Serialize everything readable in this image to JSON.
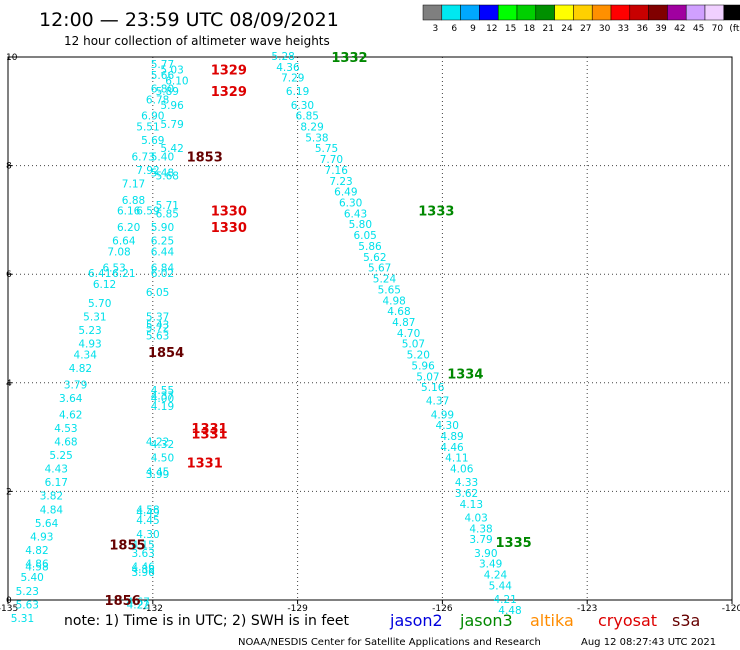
{
  "title": "12:00 — 23:59 UTC 08/09/2021",
  "subtitle": "12 hour collection of altimeter wave heights",
  "legend": {
    "labels": [
      "3",
      "6",
      "9",
      "12",
      "15",
      "18",
      "21",
      "24",
      "27",
      "30",
      "33",
      "36",
      "39",
      "42",
      "45",
      "70",
      "(ft)"
    ],
    "colors": [
      "#7f7f7f",
      "#00e8f0",
      "#00a8ff",
      "#0000ff",
      "#00ff00",
      "#00d000",
      "#009000",
      "#ffff00",
      "#ffd000",
      "#ff9000",
      "#ff0000",
      "#c80000",
      "#800000",
      "#a000a0",
      "#d0a0ff",
      "#f0d0ff",
      "#000000"
    ]
  },
  "note": "note:  1) Time is in UTC;  2) SWH is in feet",
  "satellites": [
    {
      "name": "jason2",
      "color": "#0000dd"
    },
    {
      "name": "jason3",
      "color": "#008800"
    },
    {
      "name": "altika",
      "color": "#ff8c00"
    },
    {
      "name": "cryosat",
      "color": "#dd0000"
    },
    {
      "name": "s3a",
      "color": "#660000"
    }
  ],
  "credit": "NOAA/NESDIS Center for Satellite Applications and Research",
  "timestamp": "Aug 12 08:27:43 UTC 2021",
  "chart_data": {
    "type": "scatter",
    "xlim": [
      -135,
      -120
    ],
    "ylim": [
      0,
      10
    ],
    "x_ticks": [
      "-135",
      "-132",
      "-129",
      "-126",
      "-123",
      "-120"
    ],
    "y_ticks": [
      "0",
      "2",
      "4",
      "6",
      "8",
      "10"
    ],
    "grid": true,
    "orbit_labels": [
      {
        "text": "1329",
        "x": -130.8,
        "y": 9.77,
        "color": "#dd0000"
      },
      {
        "text": "1329",
        "x": -130.8,
        "y": 9.37,
        "color": "#dd0000"
      },
      {
        "text": "1853",
        "x": -131.3,
        "y": 8.17,
        "color": "#660000"
      },
      {
        "text": "1330",
        "x": -130.8,
        "y": 7.17,
        "color": "#dd0000"
      },
      {
        "text": "1330",
        "x": -130.8,
        "y": 6.87,
        "color": "#dd0000"
      },
      {
        "text": "1854",
        "x": -132.1,
        "y": 4.57,
        "color": "#660000"
      },
      {
        "text": "1331",
        "x": -131.2,
        "y": 3.17,
        "color": "#dd0000"
      },
      {
        "text": "1331",
        "x": -131.2,
        "y": 3.07,
        "color": "#dd0000"
      },
      {
        "text": "1331",
        "x": -131.3,
        "y": 2.53,
        "color": "#dd0000"
      },
      {
        "text": "1855",
        "x": -132.9,
        "y": 1.02,
        "color": "#660000"
      },
      {
        "text": "1856",
        "x": -133.0,
        "y": 0.0,
        "color": "#660000"
      },
      {
        "text": "1332",
        "x": -128.3,
        "y": 10.0,
        "color": "#008800"
      },
      {
        "text": "1333",
        "x": -126.5,
        "y": 7.17,
        "color": "#008800"
      },
      {
        "text": "1334",
        "x": -125.9,
        "y": 4.17,
        "color": "#008800"
      },
      {
        "text": "1335",
        "x": -124.9,
        "y": 1.07,
        "color": "#008800"
      }
    ],
    "series": [
      {
        "name": "track-1329-1331",
        "points": [
          {
            "x": -131.8,
            "y": 9.87,
            "v": "5.77"
          },
          {
            "x": -131.6,
            "y": 9.77,
            "v": "5.03"
          },
          {
            "x": -131.8,
            "y": 9.67,
            "v": "5.66"
          },
          {
            "x": -131.5,
            "y": 9.57,
            "v": "6.10"
          },
          {
            "x": -131.8,
            "y": 9.42,
            "v": "6.80"
          },
          {
            "x": -131.7,
            "y": 9.37,
            "v": "5.89"
          },
          {
            "x": -131.9,
            "y": 9.22,
            "v": "6.78"
          },
          {
            "x": -131.6,
            "y": 9.12,
            "v": "5.96"
          },
          {
            "x": -132.0,
            "y": 8.92,
            "v": "6.90"
          },
          {
            "x": -131.6,
            "y": 8.77,
            "v": "5.79"
          },
          {
            "x": -132.1,
            "y": 8.72,
            "v": "5.51"
          },
          {
            "x": -132.0,
            "y": 8.47,
            "v": "5.69"
          },
          {
            "x": -131.6,
            "y": 8.32,
            "v": "5.42"
          },
          {
            "x": -132.2,
            "y": 8.17,
            "v": "6.73"
          },
          {
            "x": -131.8,
            "y": 8.17,
            "v": "5.40"
          },
          {
            "x": -132.1,
            "y": 7.92,
            "v": "7.92"
          },
          {
            "x": -131.8,
            "y": 7.87,
            "v": "5.48"
          },
          {
            "x": -131.7,
            "y": 7.82,
            "v": "5.68"
          },
          {
            "x": -132.4,
            "y": 7.67,
            "v": "7.17"
          },
          {
            "x": -132.4,
            "y": 7.37,
            "v": "6.88"
          },
          {
            "x": -131.7,
            "y": 7.27,
            "v": "5.71"
          },
          {
            "x": -132.5,
            "y": 7.17,
            "v": "6.16"
          },
          {
            "x": -132.1,
            "y": 7.17,
            "v": "6.59"
          },
          {
            "x": -131.7,
            "y": 7.12,
            "v": "6.85"
          },
          {
            "x": -132.5,
            "y": 6.87,
            "v": "6.20"
          },
          {
            "x": -131.8,
            "y": 6.87,
            "v": "5.90"
          },
          {
            "x": -132.6,
            "y": 6.62,
            "v": "6.64"
          },
          {
            "x": -131.8,
            "y": 6.62,
            "v": "6.25"
          },
          {
            "x": -132.7,
            "y": 6.42,
            "v": "7.08"
          },
          {
            "x": -131.8,
            "y": 6.42,
            "v": "6.44"
          },
          {
            "x": -132.8,
            "y": 6.12,
            "v": "6.53"
          },
          {
            "x": -131.8,
            "y": 6.12,
            "v": "6.84"
          },
          {
            "x": -133.1,
            "y": 6.02,
            "v": "6.41"
          },
          {
            "x": -132.6,
            "y": 6.02,
            "v": "6.21"
          },
          {
            "x": -131.8,
            "y": 6.02,
            "v": "6.02"
          },
          {
            "x": -133.0,
            "y": 5.82,
            "v": "6.12"
          },
          {
            "x": -131.9,
            "y": 5.67,
            "v": "6.05"
          },
          {
            "x": -133.1,
            "y": 5.47,
            "v": "5.70"
          },
          {
            "x": -133.2,
            "y": 5.22,
            "v": "5.31"
          },
          {
            "x": -131.9,
            "y": 5.22,
            "v": "5.37"
          },
          {
            "x": -131.9,
            "y": 5.07,
            "v": "5.43"
          },
          {
            "x": -131.9,
            "y": 5.02,
            "v": "5.72"
          },
          {
            "x": -133.3,
            "y": 4.97,
            "v": "5.23"
          },
          {
            "x": -131.9,
            "y": 4.87,
            "v": "5.63"
          },
          {
            "x": -133.3,
            "y": 4.72,
            "v": "4.93"
          },
          {
            "x": -133.4,
            "y": 4.52,
            "v": "4.34"
          },
          {
            "x": -133.5,
            "y": 4.27,
            "v": "4.82"
          },
          {
            "x": -133.6,
            "y": 3.97,
            "v": "3.79"
          },
          {
            "x": -131.8,
            "y": 3.87,
            "v": "4.55"
          },
          {
            "x": -131.8,
            "y": 3.77,
            "v": "4.37"
          },
          {
            "x": -131.8,
            "y": 3.72,
            "v": "4.00"
          },
          {
            "x": -133.7,
            "y": 3.72,
            "v": "3.64"
          },
          {
            "x": -131.8,
            "y": 3.57,
            "v": "4.19"
          },
          {
            "x": -133.7,
            "y": 3.42,
            "v": "4.62"
          },
          {
            "x": -133.8,
            "y": 3.17,
            "v": "4.53"
          },
          {
            "x": -133.8,
            "y": 2.92,
            "v": "4.68"
          },
          {
            "x": -131.9,
            "y": 2.92,
            "v": "4.22"
          },
          {
            "x": -131.8,
            "y": 2.87,
            "v": "4.32"
          },
          {
            "x": -133.9,
            "y": 2.67,
            "v": "5.25"
          },
          {
            "x": -131.8,
            "y": 2.62,
            "v": "4.50"
          },
          {
            "x": -134.0,
            "y": 2.42,
            "v": "4.43"
          },
          {
            "x": -131.9,
            "y": 2.37,
            "v": "4.45"
          },
          {
            "x": -131.9,
            "y": 2.32,
            "v": "3.99"
          },
          {
            "x": -134.0,
            "y": 2.17,
            "v": "6.17"
          },
          {
            "x": -134.1,
            "y": 1.92,
            "v": "3.82"
          },
          {
            "x": -134.1,
            "y": 1.67,
            "v": "4.84"
          },
          {
            "x": -132.1,
            "y": 1.67,
            "v": "4.58"
          },
          {
            "x": -132.1,
            "y": 1.62,
            "v": "4.49"
          },
          {
            "x": -132.1,
            "y": 1.47,
            "v": "4.45"
          },
          {
            "x": -134.2,
            "y": 1.42,
            "v": "5.64"
          },
          {
            "x": -132.1,
            "y": 1.22,
            "v": "4.30"
          },
          {
            "x": -134.3,
            "y": 1.17,
            "v": "4.93"
          },
          {
            "x": -132.2,
            "y": 1.02,
            "v": "4.15"
          },
          {
            "x": -134.4,
            "y": 0.92,
            "v": "4.82"
          },
          {
            "x": -132.2,
            "y": 0.87,
            "v": "3.63"
          },
          {
            "x": -134.4,
            "y": 0.67,
            "v": "4.86"
          },
          {
            "x": -134.4,
            "y": 0.62,
            "v": "4.58"
          },
          {
            "x": -132.2,
            "y": 0.62,
            "v": "4.46"
          },
          {
            "x": -132.2,
            "y": 0.57,
            "v": "4.38"
          },
          {
            "x": -132.2,
            "y": 0.52,
            "v": "3.96"
          },
          {
            "x": -134.5,
            "y": 0.42,
            "v": "5.40"
          },
          {
            "x": -134.6,
            "y": 0.17,
            "v": "5.23"
          },
          {
            "x": -132.3,
            "y": -0.03,
            "v": "4.67"
          },
          {
            "x": -134.6,
            "y": -0.08,
            "v": "5.63"
          },
          {
            "x": -132.3,
            "y": -0.08,
            "v": "4.22"
          },
          {
            "x": -134.7,
            "y": -0.33,
            "v": "5.31"
          }
        ]
      },
      {
        "name": "track-1332-1335",
        "points": [
          {
            "x": -129.3,
            "y": 10.02,
            "v": "5.28"
          },
          {
            "x": -129.2,
            "y": 9.82,
            "v": "4.36"
          },
          {
            "x": -129.1,
            "y": 9.62,
            "v": "7.29"
          },
          {
            "x": -129.0,
            "y": 9.37,
            "v": "6.19"
          },
          {
            "x": -128.9,
            "y": 9.12,
            "v": "6.30"
          },
          {
            "x": -128.8,
            "y": 8.92,
            "v": "6.85"
          },
          {
            "x": -128.7,
            "y": 8.72,
            "v": "8.29"
          },
          {
            "x": -128.6,
            "y": 8.52,
            "v": "5.38"
          },
          {
            "x": -128.4,
            "y": 8.32,
            "v": "5.75"
          },
          {
            "x": -128.3,
            "y": 8.12,
            "v": "7.70"
          },
          {
            "x": -128.2,
            "y": 7.92,
            "v": "7.16"
          },
          {
            "x": -128.1,
            "y": 7.72,
            "v": "7.23"
          },
          {
            "x": -128.0,
            "y": 7.52,
            "v": "6.49"
          },
          {
            "x": -127.9,
            "y": 7.32,
            "v": "6.30"
          },
          {
            "x": -127.8,
            "y": 7.12,
            "v": "6.43"
          },
          {
            "x": -127.7,
            "y": 6.92,
            "v": "5.80"
          },
          {
            "x": -127.6,
            "y": 6.72,
            "v": "6.05"
          },
          {
            "x": -127.5,
            "y": 6.52,
            "v": "5.86"
          },
          {
            "x": -127.4,
            "y": 6.32,
            "v": "5.62"
          },
          {
            "x": -127.3,
            "y": 6.12,
            "v": "5.67"
          },
          {
            "x": -127.2,
            "y": 5.92,
            "v": "5.24"
          },
          {
            "x": -127.1,
            "y": 5.72,
            "v": "5.65"
          },
          {
            "x": -127.0,
            "y": 5.52,
            "v": "4.98"
          },
          {
            "x": -126.9,
            "y": 5.32,
            "v": "4.68"
          },
          {
            "x": -126.8,
            "y": 5.12,
            "v": "4.87"
          },
          {
            "x": -126.7,
            "y": 4.92,
            "v": "4.70"
          },
          {
            "x": -126.6,
            "y": 4.72,
            "v": "5.07"
          },
          {
            "x": -126.5,
            "y": 4.52,
            "v": "5.20"
          },
          {
            "x": -126.4,
            "y": 4.32,
            "v": "5.96"
          },
          {
            "x": -126.3,
            "y": 4.12,
            "v": "5.07"
          },
          {
            "x": -126.2,
            "y": 3.92,
            "v": "5.16"
          },
          {
            "x": -126.1,
            "y": 3.67,
            "v": "4.37"
          },
          {
            "x": -126.0,
            "y": 3.42,
            "v": "4.99"
          },
          {
            "x": -125.9,
            "y": 3.22,
            "v": "4.30"
          },
          {
            "x": -125.8,
            "y": 3.02,
            "v": "4.89"
          },
          {
            "x": -125.8,
            "y": 2.82,
            "v": "4.46"
          },
          {
            "x": -125.7,
            "y": 2.62,
            "v": "4.11"
          },
          {
            "x": -125.6,
            "y": 2.42,
            "v": "4.06"
          },
          {
            "x": -125.5,
            "y": 2.17,
            "v": "4.33"
          },
          {
            "x": -125.5,
            "y": 1.97,
            "v": "3.62"
          },
          {
            "x": -125.4,
            "y": 1.77,
            "v": "4.13"
          },
          {
            "x": -125.3,
            "y": 1.52,
            "v": "4.03"
          },
          {
            "x": -125.2,
            "y": 1.32,
            "v": "4.38"
          },
          {
            "x": -125.2,
            "y": 1.12,
            "v": "3.79"
          },
          {
            "x": -125.1,
            "y": 0.87,
            "v": "3.90"
          },
          {
            "x": -125.0,
            "y": 0.67,
            "v": "3.49"
          },
          {
            "x": -124.9,
            "y": 0.47,
            "v": "4.24"
          },
          {
            "x": -124.8,
            "y": 0.27,
            "v": "5.44"
          },
          {
            "x": -124.7,
            "y": 0.02,
            "v": "4.21"
          },
          {
            "x": -124.6,
            "y": -0.18,
            "v": "4.48"
          }
        ]
      }
    ]
  }
}
